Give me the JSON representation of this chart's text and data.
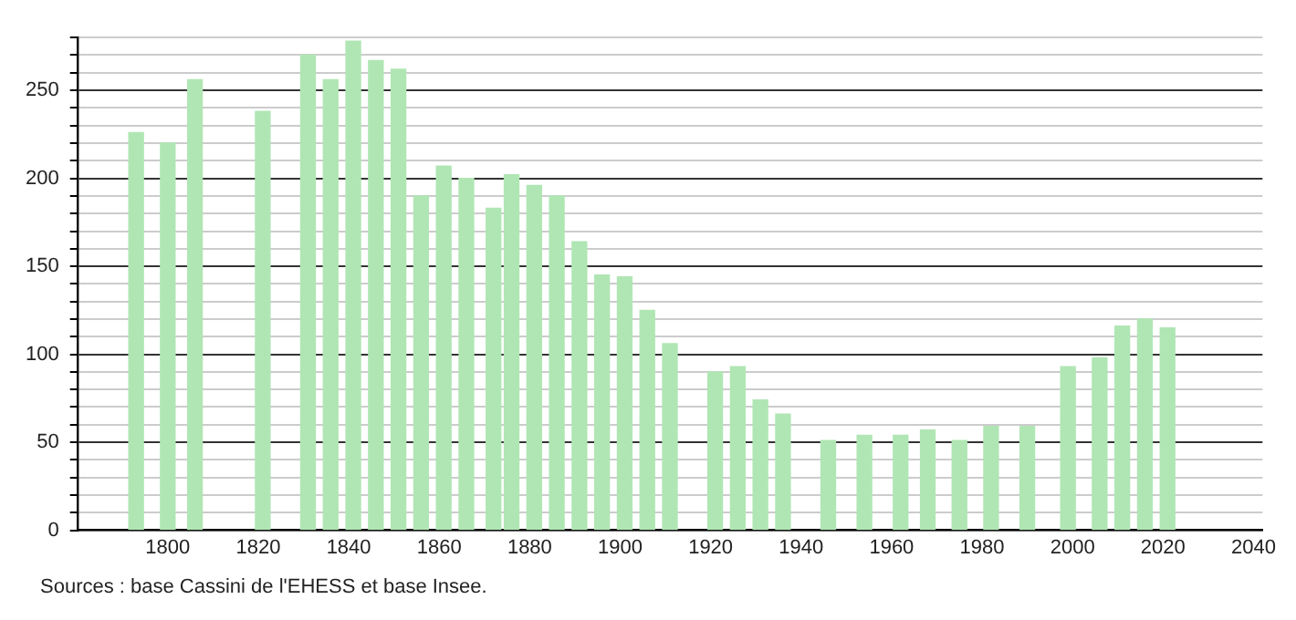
{
  "chart_data": {
    "type": "bar",
    "x": [
      1793,
      1800,
      1806,
      1821,
      1831,
      1836,
      1841,
      1846,
      1851,
      1856,
      1861,
      1866,
      1872,
      1876,
      1881,
      1886,
      1891,
      1896,
      1901,
      1906,
      1911,
      1921,
      1926,
      1931,
      1936,
      1946,
      1954,
      1962,
      1968,
      1975,
      1982,
      1990,
      1999,
      2006,
      2011,
      2016,
      2021
    ],
    "values": [
      226,
      220,
      256,
      238,
      270,
      256,
      278,
      267,
      262,
      190,
      207,
      200,
      183,
      202,
      196,
      190,
      164,
      145,
      144,
      125,
      106,
      90,
      93,
      74,
      66,
      51,
      54,
      54,
      57,
      51,
      59,
      59,
      93,
      98,
      116,
      120,
      115
    ],
    "color": "#b0e6b4",
    "xlim": [
      1780,
      2042
    ],
    "xticks": [
      1800,
      1820,
      1840,
      1860,
      1880,
      1900,
      1920,
      1940,
      1960,
      1980,
      2000,
      2020,
      2040
    ],
    "ylim": [
      0,
      280
    ],
    "yticks": [
      0,
      {
        "value": 10,
        "label": null
      },
      {
        "value": 20,
        "label": null
      },
      {
        "value": 30,
        "label": null
      },
      {
        "value": 40,
        "label": null
      },
      50,
      {
        "value": 60,
        "label": null
      },
      {
        "value": 70,
        "label": null
      },
      {
        "value": 80,
        "label": null
      },
      {
        "value": 90,
        "label": null
      },
      100,
      {
        "value": 110,
        "label": null
      },
      {
        "value": 120,
        "label": null
      },
      {
        "value": 130,
        "label": null
      },
      {
        "value": 140,
        "label": null
      },
      150,
      {
        "value": 160,
        "label": null
      },
      {
        "value": 170,
        "label": null
      },
      {
        "value": 180,
        "label": null
      },
      {
        "value": 190,
        "label": null
      },
      200,
      {
        "value": 210,
        "label": null
      },
      {
        "value": 220,
        "label": null
      },
      {
        "value": 230,
        "label": null
      },
      {
        "value": 240,
        "label": null
      },
      250,
      {
        "value": 260,
        "label": null
      },
      {
        "value": 270,
        "label": null
      },
      {
        "value": 280,
        "label": null
      }
    ],
    "grid": "y",
    "legend": false,
    "annotations": [
      "Sources : base Cassini de l'EHESS et base Insee."
    ]
  }
}
